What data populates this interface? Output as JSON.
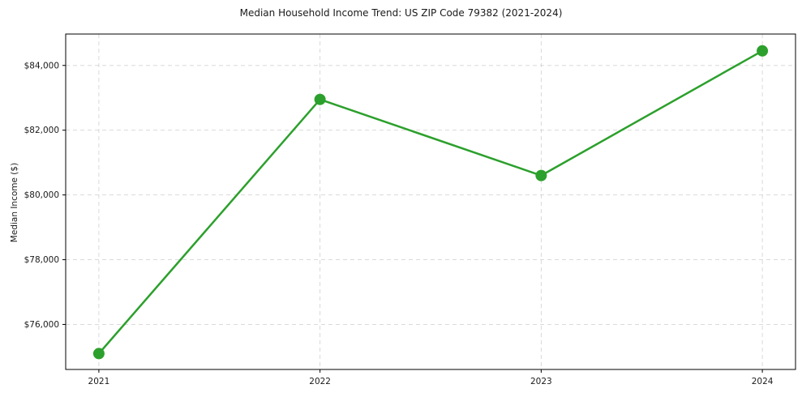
{
  "chart_data": {
    "type": "line",
    "title": "Median Household Income Trend: US ZIP Code 79382 (2021-2024)",
    "xlabel": "",
    "ylabel": "Median Income ($)",
    "x": [
      2021,
      2022,
      2023,
      2024
    ],
    "x_tick_labels": [
      "2021",
      "2022",
      "2023",
      "2024"
    ],
    "series": [
      {
        "name": "median_household_income",
        "values": [
          75100,
          82950,
          80600,
          84450
        ],
        "color": "#2ca02c",
        "marker": "circle",
        "line_width": 2.5,
        "marker_radius": 7
      }
    ],
    "yticks": [
      76000,
      78000,
      80000,
      82000,
      84000
    ],
    "ytick_labels": [
      "$76,000",
      "$78,000",
      "$80,000",
      "$82,000",
      "$84,000"
    ],
    "xlim": [
      2020.85,
      2024.15
    ],
    "ylim": [
      74610,
      84970
    ],
    "grid": "dashed",
    "grid_color": "#cccccc",
    "spine_color": "#000000",
    "legend": "none",
    "background": "#ffffff"
  }
}
